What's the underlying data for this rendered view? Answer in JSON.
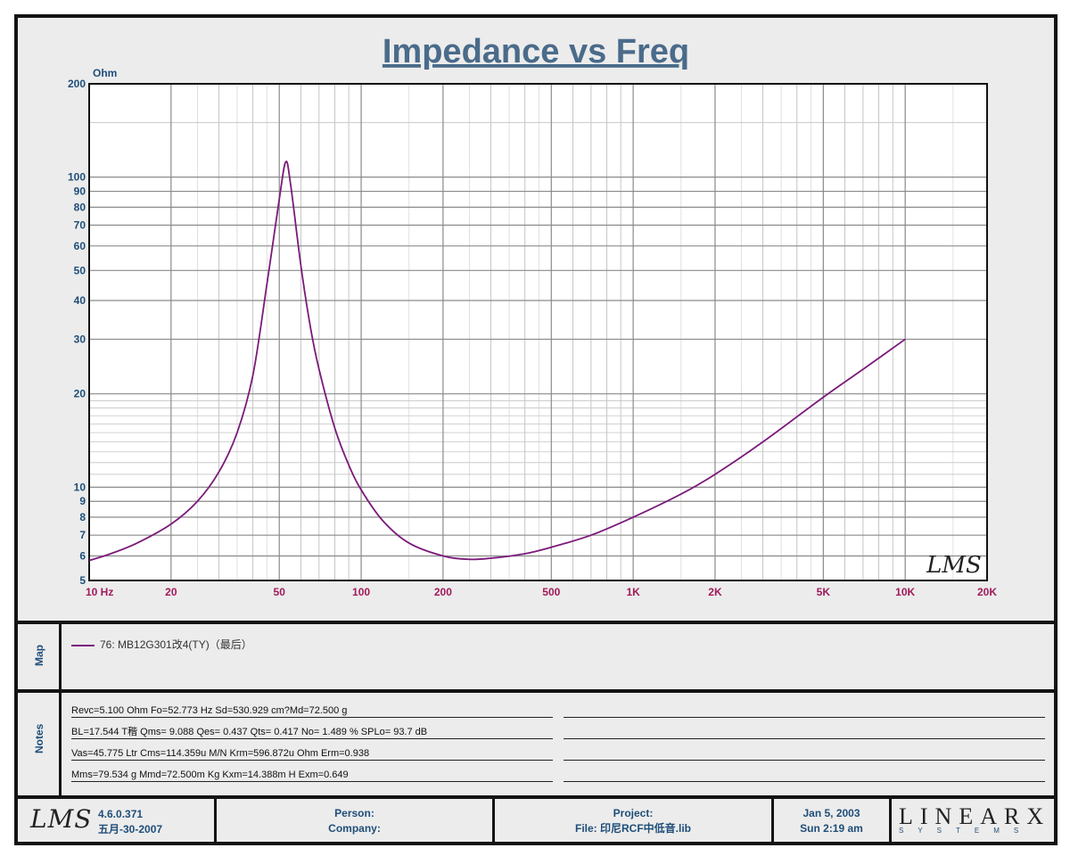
{
  "chart_data": {
    "type": "line",
    "title": "Impedance vs Freq",
    "ylabel": "Ohm",
    "xlabel": "",
    "x_scale": "log",
    "y_scale": "log",
    "xlim": [
      10,
      20000
    ],
    "ylim": [
      5,
      200
    ],
    "x_ticks": [
      {
        "v": 10,
        "label": "10  Hz"
      },
      {
        "v": 20,
        "label": "20"
      },
      {
        "v": 50,
        "label": "50"
      },
      {
        "v": 100,
        "label": "100"
      },
      {
        "v": 200,
        "label": "200"
      },
      {
        "v": 500,
        "label": "500"
      },
      {
        "v": 1000,
        "label": "1K"
      },
      {
        "v": 2000,
        "label": "2K"
      },
      {
        "v": 5000,
        "label": "5K"
      },
      {
        "v": 10000,
        "label": "10K"
      },
      {
        "v": 20000,
        "label": "20K"
      }
    ],
    "y_ticks": [
      {
        "v": 200,
        "label": "200"
      },
      {
        "v": 100,
        "label": "100"
      },
      {
        "v": 90,
        "label": "90"
      },
      {
        "v": 80,
        "label": "80"
      },
      {
        "v": 70,
        "label": "70"
      },
      {
        "v": 60,
        "label": "60"
      },
      {
        "v": 50,
        "label": "50"
      },
      {
        "v": 40,
        "label": "40"
      },
      {
        "v": 30,
        "label": "30"
      },
      {
        "v": 20,
        "label": "20"
      },
      {
        "v": 10,
        "label": "10"
      },
      {
        "v": 9,
        "label": "9"
      },
      {
        "v": 8,
        "label": "8"
      },
      {
        "v": 7,
        "label": "7"
      },
      {
        "v": 6,
        "label": "6"
      },
      {
        "v": 5,
        "label": "5"
      }
    ],
    "grid": true,
    "series": [
      {
        "name": "76: MB12G301改4(TY)（最后）",
        "color": "#7b1a7b",
        "x": [
          10,
          12,
          15,
          20,
          25,
          30,
          35,
          40,
          45,
          50,
          52.8,
          55,
          60,
          65,
          70,
          80,
          90,
          100,
          120,
          150,
          200,
          250,
          300,
          400,
          500,
          700,
          1000,
          1500,
          2000,
          3000,
          5000,
          7000,
          10000
        ],
        "y": [
          5.8,
          6.1,
          6.6,
          7.6,
          9.0,
          11.2,
          15.0,
          23.0,
          45.0,
          85.0,
          112.0,
          95.0,
          52.0,
          33.0,
          24.0,
          15.5,
          11.8,
          9.8,
          7.8,
          6.6,
          6.0,
          5.85,
          5.9,
          6.1,
          6.4,
          7.0,
          8.0,
          9.5,
          11.0,
          14.0,
          19.5,
          24.0,
          30.0
        ]
      }
    ]
  },
  "watermark": "LMS",
  "map": {
    "label": "Map",
    "legend": "76: MB12G301改4(TY)（最后）"
  },
  "notes": {
    "label": "Notes",
    "lines": [
      "Revc=5.100 Ohm  Fo=52.773 Hz  Sd=530.929 cm?Md=72.500 g",
      "BL=17.544 T稭  Qms= 9.088  Qes= 0.437  Qts= 0.417  No= 1.489 %  SPLo= 93.7 dB",
      "Vas=45.775 Ltr  Cms=114.359u M/N  Krm=596.872u Ohm  Erm=0.938",
      "Mms=79.534 g  Mmd=72.500m Kg  Kxm=14.388m H  Exm=0.649"
    ]
  },
  "footer": {
    "logo": "LMS",
    "version": "4.6.0.371",
    "build_date": "五月-30-2007",
    "person_label": "Person:",
    "company_label": "Company:",
    "project_label": "Project:",
    "file_label": "File: 印尼RCF中低音.lib",
    "date": "Jan  5, 2003",
    "time": "Sun  2:19 am",
    "brand": "LINEARX",
    "brand_sub": "SYSTEMS"
  }
}
